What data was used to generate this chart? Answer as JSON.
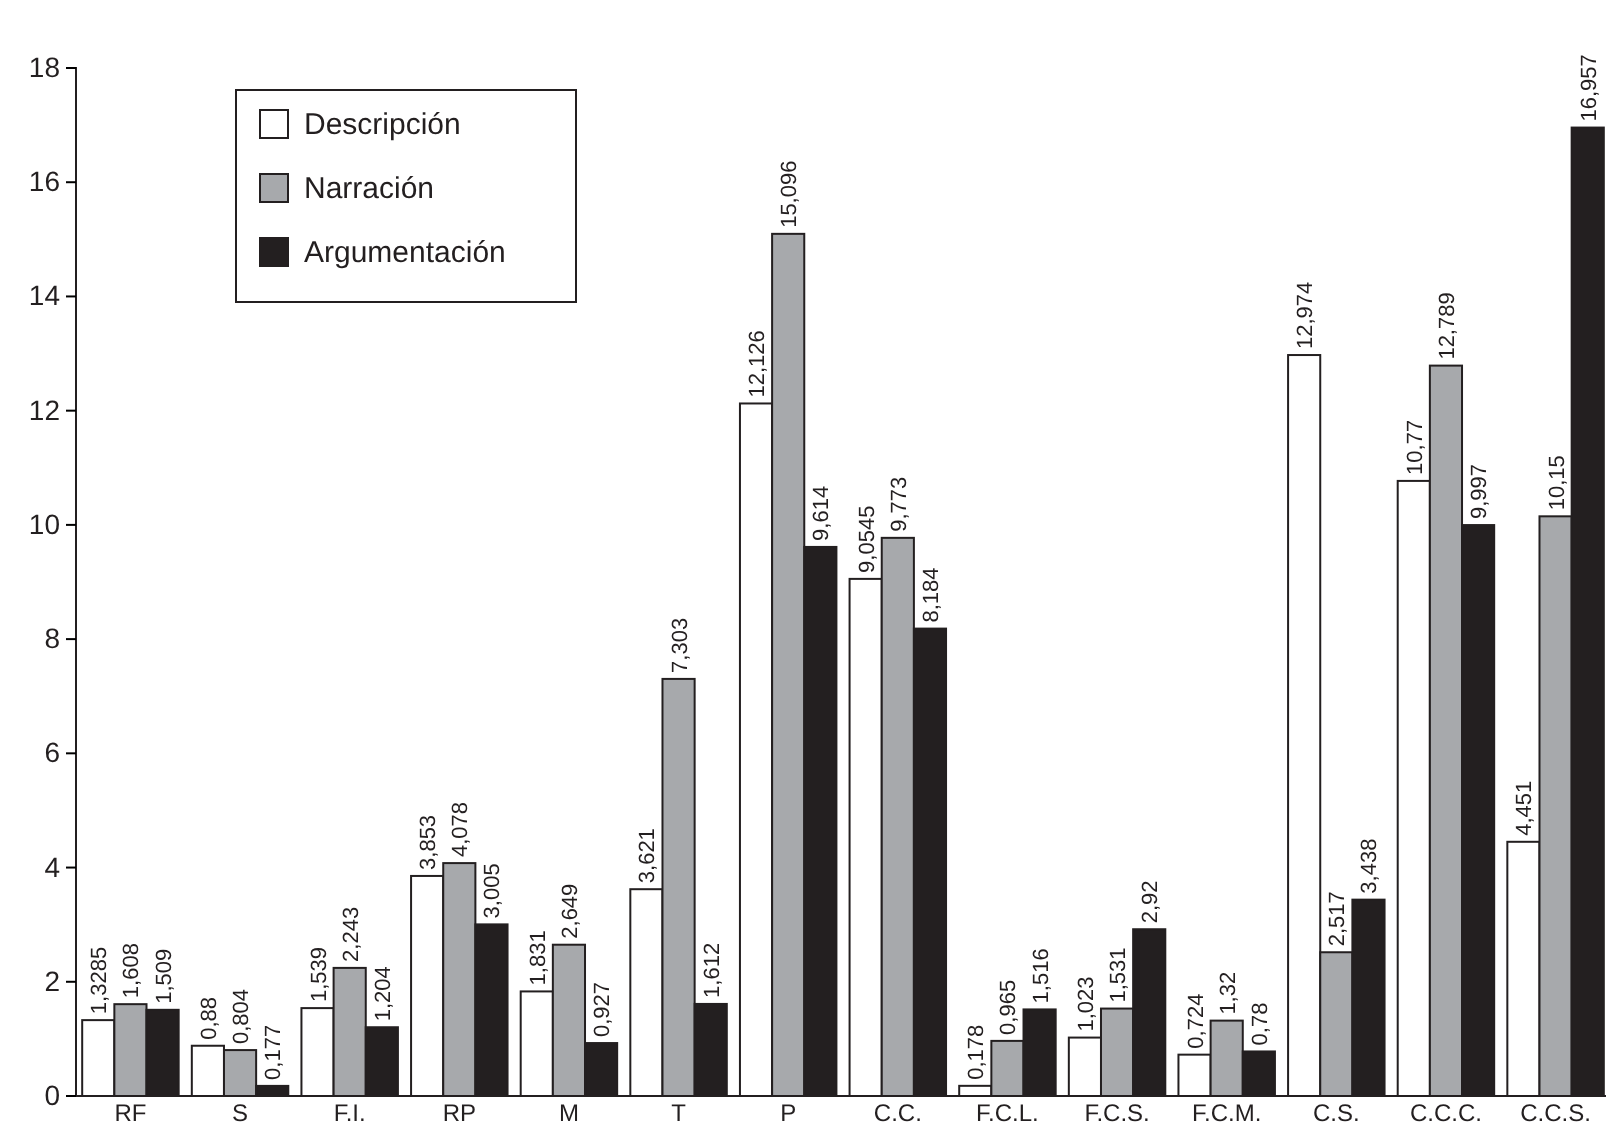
{
  "chart_data": {
    "type": "bar",
    "categories": [
      "RF",
      "S",
      "F.I.",
      "RP",
      "M",
      "T",
      "P",
      "C.C.",
      "F.C.L.",
      "F.C.S.",
      "F.C.M.",
      "C.S.",
      "C.C.C.",
      "C.C.S."
    ],
    "series": [
      {
        "name": "Descripción",
        "color": "#ffffff",
        "values": [
          1.3285,
          0.88,
          1.539,
          3.853,
          1.831,
          3.621,
          12.126,
          9.0545,
          0.178,
          1.023,
          0.724,
          12.974,
          10.77,
          4.451
        ],
        "value_labels": [
          "1,3285",
          "0,88",
          "1,539",
          "3,853",
          "1,831",
          "3,621",
          "12,126",
          "9,0545",
          "0,178",
          "1,023",
          "0,724",
          "12,974",
          "10,77",
          "4,451"
        ]
      },
      {
        "name": "Narración",
        "color": "#a7a9ac",
        "values": [
          1.608,
          0.804,
          2.243,
          4.078,
          2.649,
          7.303,
          15.096,
          9.773,
          0.965,
          1.531,
          1.32,
          2.517,
          12.789,
          10.15
        ],
        "value_labels": [
          "1,608",
          "0,804",
          "2,243",
          "4,078",
          "2,649",
          "7,303",
          "15,096",
          "9,773",
          "0,965",
          "1,531",
          "1,32",
          "2,517",
          "12,789",
          "10,15"
        ]
      },
      {
        "name": "Argumentación",
        "color": "#231f20",
        "values": [
          1.509,
          0.177,
          1.204,
          3.005,
          0.927,
          1.612,
          9.614,
          8.184,
          1.516,
          2.92,
          0.78,
          3.438,
          9.997,
          16.957
        ],
        "value_labels": [
          "1,509",
          "0,177",
          "1,204",
          "3,005",
          "0,927",
          "1,612",
          "9,614",
          "8,184",
          "1,516",
          "2,92",
          "0,78",
          "3,438",
          "9,997",
          "16,957"
        ]
      }
    ],
    "ylim": [
      0,
      18
    ],
    "yticks": [
      0,
      2,
      4,
      6,
      8,
      10,
      12,
      14,
      16,
      18
    ],
    "grid": false,
    "legend": "top left"
  }
}
